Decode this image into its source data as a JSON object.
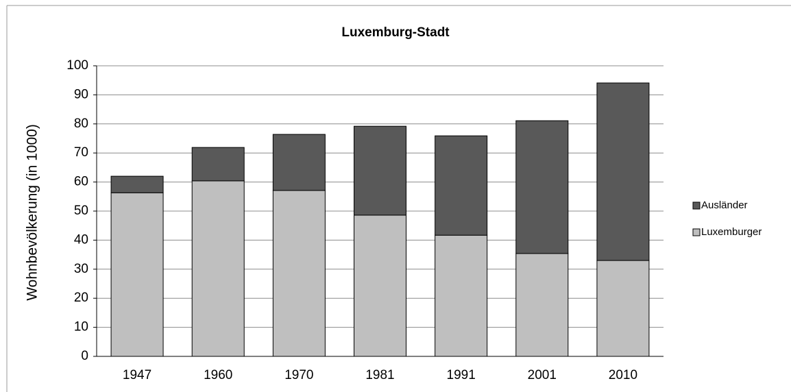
{
  "chart_data": {
    "type": "stacked_bar",
    "title": "Luxemburg-Stadt",
    "y_label": "Wohnbevölkerung  (in 1000)",
    "categories": [
      "1947",
      "1960",
      "1970",
      "1981",
      "1991",
      "2001",
      "2010"
    ],
    "series": [
      {
        "name": "Luxemburger",
        "color": "#bfbfbf",
        "values": [
          56.3,
          60.4,
          57.1,
          48.6,
          41.7,
          35.4,
          33.0
        ]
      },
      {
        "name": "Ausländer",
        "color": "#595959",
        "values": [
          5.7,
          11.5,
          19.3,
          30.6,
          34.2,
          45.7,
          61.1
        ]
      }
    ],
    "ylim": [
      0,
      100
    ],
    "yticks": [
      0,
      10,
      20,
      30,
      40,
      50,
      60,
      70,
      80,
      90,
      100
    ],
    "grid": true,
    "legend": "right"
  }
}
